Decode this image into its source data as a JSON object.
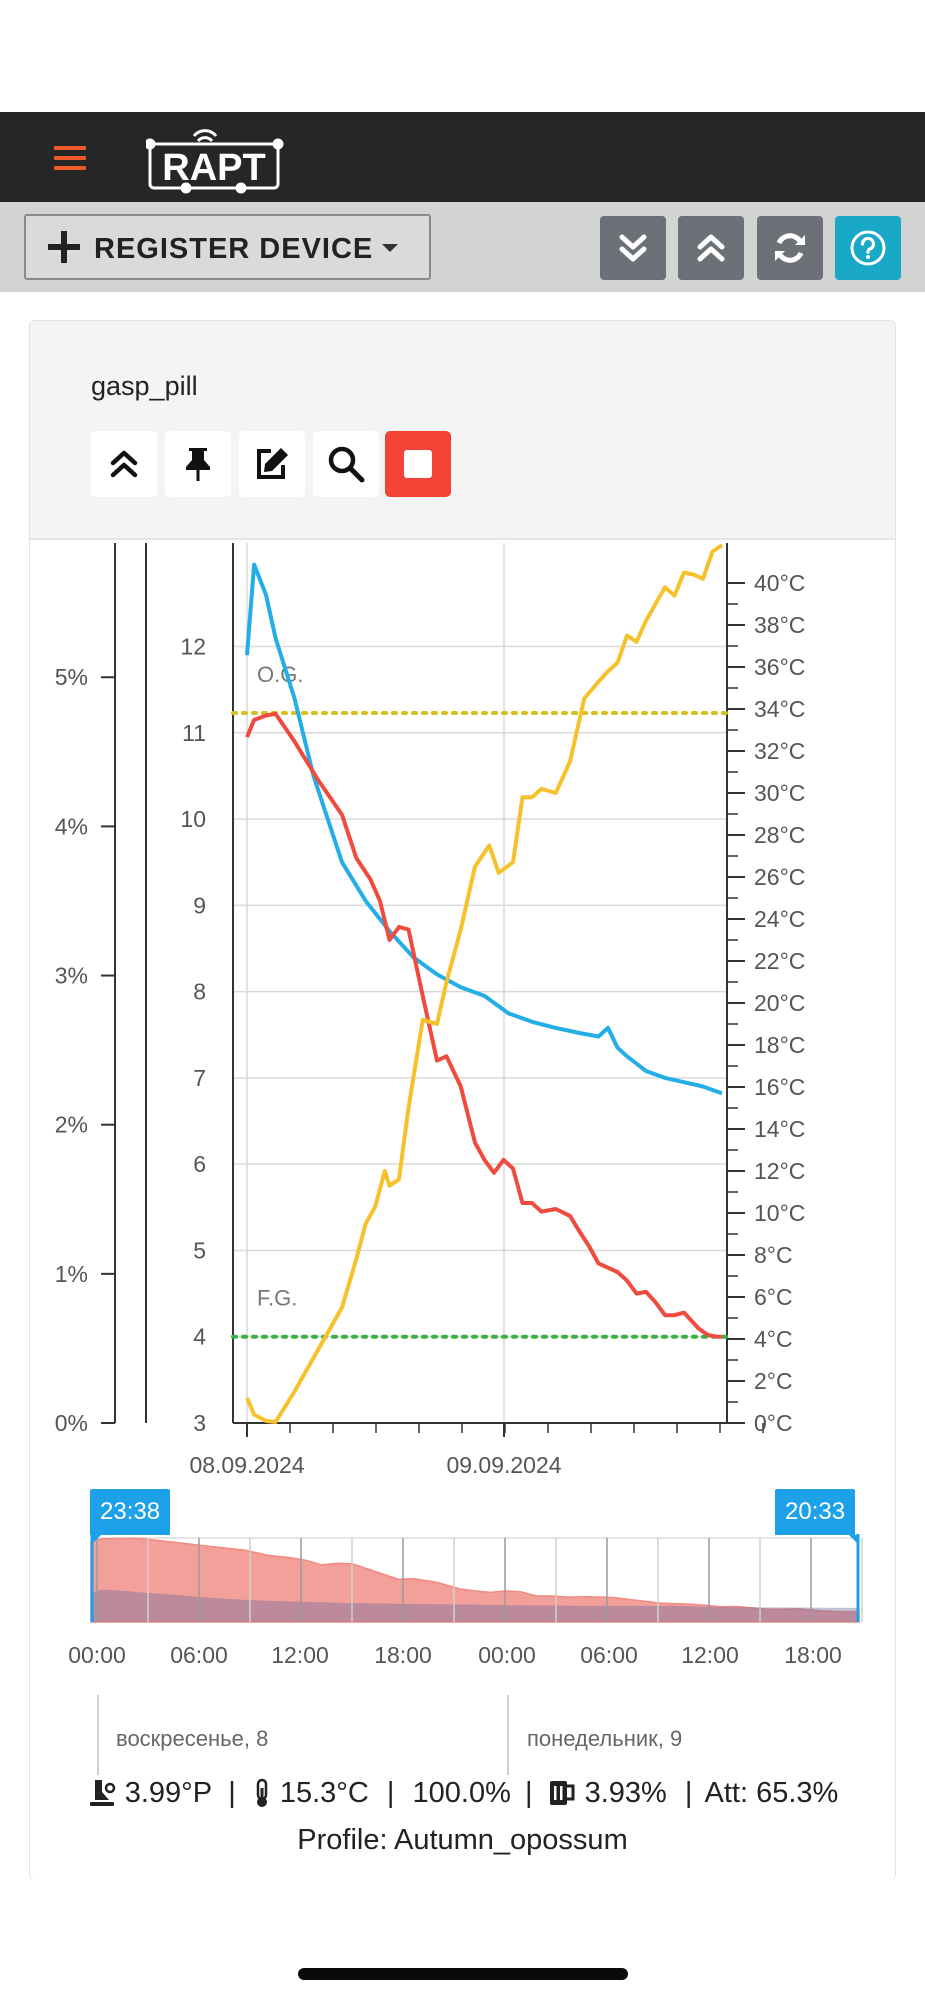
{
  "app": {
    "logo_text": "RAPT",
    "colors": {
      "topbar": "#262626",
      "accent": "#ef5a2a",
      "help": "#19a8c8",
      "stop": "#f44336",
      "toolbar_btn": "#6b7177"
    }
  },
  "toolbar": {
    "register_label": "REGISTER DEVICE",
    "buttons": [
      "collapse-all-icon",
      "expand-all-icon",
      "refresh-icon",
      "help-icon"
    ]
  },
  "device": {
    "name": "gasp_pill",
    "actions": [
      "chevrons-up-icon",
      "pin-icon",
      "edit-icon",
      "search-icon",
      "stop-icon"
    ]
  },
  "chart_data": {
    "type": "line",
    "x_ticks": [
      "08.09.2024",
      "09.09.2024"
    ],
    "left_axis": {
      "ticks": [
        "0%",
        "1%",
        "2%",
        "3%",
        "4%",
        "5%"
      ],
      "range": [
        0,
        5.9
      ]
    },
    "gravity_axis": {
      "ticks": [
        "3",
        "4",
        "5",
        "6",
        "7",
        "8",
        "9",
        "10",
        "11",
        "12"
      ],
      "range": [
        3,
        13.2
      ]
    },
    "temp_axis": {
      "ticks": [
        "0°C",
        "2°C",
        "4°C",
        "6°C",
        "8°C",
        "10°C",
        "12°C",
        "14°C",
        "16°C",
        "18°C",
        "20°C",
        "22°C",
        "24°C",
        "26°C",
        "28°C",
        "30°C",
        "32°C",
        "34°C",
        "36°C",
        "38°C",
        "40°C"
      ],
      "range": [
        0,
        41
      ]
    },
    "annotations": [
      {
        "label": "O.G.",
        "value": 11.23,
        "color": "#d4c11d"
      },
      {
        "label": "F.G.",
        "value": 4.0,
        "color": "#3cb043"
      }
    ],
    "series": [
      {
        "color": "#23aee8",
        "axis": "gravity",
        "x": [
          0,
          0.015,
          0.04,
          0.06,
          0.1,
          0.14,
          0.2,
          0.25,
          0.3,
          0.35,
          0.4,
          0.45,
          0.5,
          0.55,
          0.6,
          0.65,
          0.7,
          0.74,
          0.76,
          0.78,
          0.8,
          0.84,
          0.88,
          0.92,
          0.96,
          1.0
        ],
        "values": [
          11.9,
          12.95,
          12.6,
          12.1,
          11.4,
          10.5,
          9.5,
          9.05,
          8.7,
          8.4,
          8.2,
          8.05,
          7.95,
          7.75,
          7.65,
          7.58,
          7.52,
          7.48,
          7.58,
          7.35,
          7.25,
          7.08,
          7.0,
          6.95,
          6.9,
          6.82
        ]
      },
      {
        "color": "#ef4b3f",
        "axis": "gravity",
        "x": [
          0,
          0.015,
          0.04,
          0.06,
          0.1,
          0.15,
          0.2,
          0.23,
          0.26,
          0.28,
          0.3,
          0.32,
          0.34,
          0.37,
          0.4,
          0.42,
          0.45,
          0.48,
          0.5,
          0.52,
          0.54,
          0.56,
          0.58,
          0.6,
          0.62,
          0.65,
          0.68,
          0.7,
          0.72,
          0.74,
          0.76,
          0.78,
          0.8,
          0.82,
          0.84,
          0.86,
          0.88,
          0.9,
          0.92,
          0.95,
          0.97,
          0.99,
          1.0
        ],
        "values": [
          10.95,
          11.15,
          11.2,
          11.22,
          10.9,
          10.45,
          10.05,
          9.55,
          9.3,
          9.05,
          8.6,
          8.75,
          8.72,
          7.95,
          7.2,
          7.25,
          6.9,
          6.25,
          6.05,
          5.9,
          6.05,
          5.95,
          5.55,
          5.55,
          5.45,
          5.48,
          5.4,
          5.22,
          5.05,
          4.85,
          4.8,
          4.75,
          4.65,
          4.5,
          4.52,
          4.4,
          4.25,
          4.25,
          4.28,
          4.1,
          4.02,
          4.0,
          4.0
        ]
      },
      {
        "color": "#f6c12b",
        "axis": "temp",
        "x": [
          0,
          0.015,
          0.04,
          0.06,
          0.1,
          0.15,
          0.2,
          0.23,
          0.25,
          0.27,
          0.29,
          0.3,
          0.32,
          0.34,
          0.37,
          0.4,
          0.42,
          0.45,
          0.48,
          0.51,
          0.53,
          0.56,
          0.58,
          0.6,
          0.62,
          0.65,
          0.68,
          0.71,
          0.74,
          0.76,
          0.78,
          0.8,
          0.82,
          0.84,
          0.86,
          0.88,
          0.9,
          0.92,
          0.94,
          0.96,
          0.98,
          1.0
        ],
        "values": [
          1.2,
          0.4,
          0.1,
          0.05,
          1.5,
          3.5,
          5.5,
          7.8,
          9.5,
          10.3,
          12.0,
          11.3,
          11.6,
          15.0,
          19.2,
          19.0,
          21.0,
          23.5,
          26.5,
          27.5,
          26.2,
          26.7,
          29.8,
          29.8,
          30.2,
          30.0,
          31.5,
          34.5,
          35.3,
          35.8,
          36.2,
          37.5,
          37.2,
          38.2,
          39.0,
          39.8,
          39.4,
          40.5,
          40.4,
          40.2,
          41.5,
          41.8
        ]
      }
    ]
  },
  "navigator": {
    "start_label": "23:38",
    "end_label": "20:33",
    "hour_ticks": [
      "00:00",
      "06:00",
      "12:00",
      "18:00",
      "00:00",
      "06:00",
      "12:00",
      "18:00"
    ],
    "days": [
      "воскресенье, 8",
      "понедельник, 9"
    ]
  },
  "status": {
    "gravity": "3.99°P",
    "temperature": "15.3°C",
    "battery": "100.0%",
    "abv": "3.93%",
    "attenuation": "Att: 65.3%",
    "sep": "|",
    "profile": "Profile: Autumn_opossum"
  }
}
